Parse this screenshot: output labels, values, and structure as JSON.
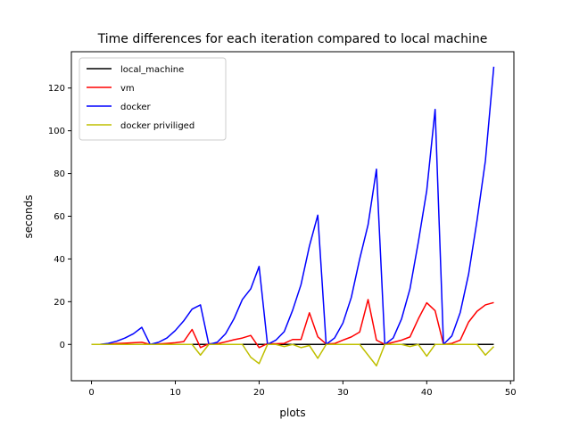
{
  "chart_data": {
    "type": "line",
    "title": "Time differences for each iteration compared to local machine",
    "xlabel": "plots",
    "ylabel": "seconds",
    "xlim": [
      -2.4,
      50.4
    ],
    "ylim": [
      -17,
      137
    ],
    "xticks": [
      0,
      10,
      20,
      30,
      40,
      50
    ],
    "yticks": [
      0,
      20,
      40,
      60,
      80,
      100,
      120
    ],
    "grid": false,
    "legend_position": "top-left",
    "x": [
      0,
      1,
      2,
      3,
      4,
      5,
      6,
      7,
      8,
      9,
      10,
      11,
      12,
      13,
      14,
      15,
      16,
      17,
      18,
      19,
      20,
      21,
      22,
      23,
      24,
      25,
      26,
      27,
      28,
      29,
      30,
      31,
      32,
      33,
      34,
      35,
      36,
      37,
      38,
      39,
      40,
      41,
      42,
      43,
      44,
      45,
      46,
      47,
      48
    ],
    "series": [
      {
        "name": "local_machine",
        "color": "#000000",
        "values": [
          0,
          0,
          0,
          0,
          0,
          0,
          0,
          0,
          0,
          0,
          0,
          0,
          0,
          0,
          0,
          0,
          0,
          0,
          0,
          0,
          0,
          0,
          0,
          0,
          0,
          0,
          0,
          0,
          0,
          0,
          0,
          0,
          0,
          0,
          0,
          0,
          0,
          0,
          0,
          0,
          0,
          0,
          0,
          0,
          0,
          0,
          0,
          0,
          0
        ]
      },
      {
        "name": "vm",
        "color": "#ff0000",
        "values": [
          0,
          0,
          0.2,
          0.4,
          0.6,
          0.8,
          1.0,
          0,
          0.2,
          0.5,
          0.8,
          1.3,
          7,
          -1.5,
          0.3,
          0.3,
          1.2,
          2.2,
          3.0,
          4.2,
          -1.5,
          0.4,
          0.3,
          0.5,
          2.3,
          2.3,
          14.8,
          3.6,
          0.2,
          0.4,
          2.0,
          3.5,
          5.8,
          21,
          2.0,
          0,
          1,
          2,
          3.5,
          12,
          19.5,
          15.8,
          0,
          0.5,
          2.0,
          10.5,
          15.5,
          18.5,
          19.6
        ]
      },
      {
        "name": "docker",
        "color": "#0000ff",
        "values": [
          0,
          0,
          0.5,
          1.5,
          3,
          5,
          8,
          0,
          1,
          3,
          6.5,
          11,
          16.5,
          18.5,
          0,
          1,
          5,
          12,
          21,
          26,
          36.5,
          0,
          2,
          6,
          16,
          28,
          46,
          60.5,
          0,
          3,
          10,
          22,
          40,
          56,
          82,
          0,
          3,
          12,
          26,
          48,
          72,
          110,
          0,
          4,
          15,
          33,
          58,
          86,
          130
        ]
      },
      {
        "name": "docker priviliged",
        "color": "#bfbf00",
        "values": [
          0,
          0,
          0,
          0,
          0,
          0,
          0,
          0,
          0,
          0,
          0,
          0,
          0,
          -5,
          0,
          0,
          0,
          0,
          0,
          -6,
          -9,
          0,
          0,
          -1,
          0,
          -1.5,
          -0.5,
          -6.5,
          0,
          0,
          0,
          0,
          0,
          -5,
          -10,
          0,
          0,
          0,
          -1,
          0,
          -5.5,
          0,
          0,
          0,
          0,
          0,
          0,
          -5,
          -1
        ]
      }
    ]
  }
}
